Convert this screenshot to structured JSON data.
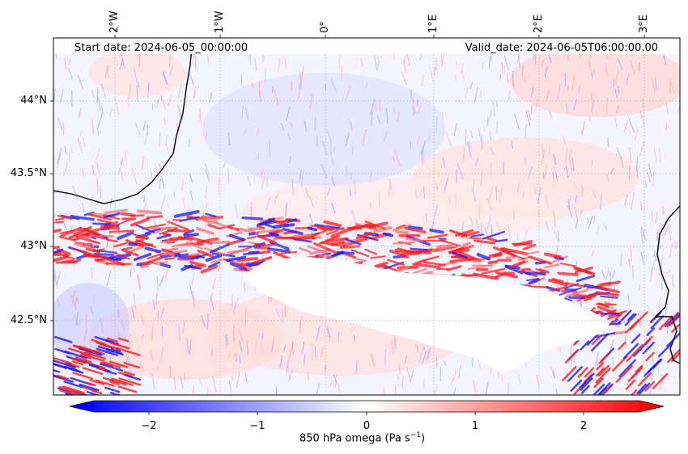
{
  "map": {
    "start_date_text": "Start date: 2024-06-05_00:00:00",
    "valid_date_text": "Valid_date: 2024-06-05T06:00:00.00",
    "lon_labels": [
      "2°W",
      "1°W",
      "0°",
      "1°E",
      "2°E",
      "3°E"
    ],
    "lat_labels": [
      "44°N",
      "43.5°N",
      "43°N",
      "42.5°N"
    ],
    "field": "850 hPa omega",
    "colormap": "bwr",
    "masked_region_color": "#ffffff",
    "coastline_color": "#000000"
  },
  "colorbar": {
    "label_main": "850 hPa omega (Pa s",
    "label_exp": "−1",
    "label_close": ")",
    "ticks": [
      "−2",
      "−1",
      "0",
      "1",
      "2"
    ],
    "tick_values": [
      -2,
      -1,
      0,
      1,
      2
    ],
    "range": [
      -2.5,
      2.5
    ],
    "extend": "both",
    "min_color": "#0000ff",
    "max_color": "#ff0000"
  }
}
